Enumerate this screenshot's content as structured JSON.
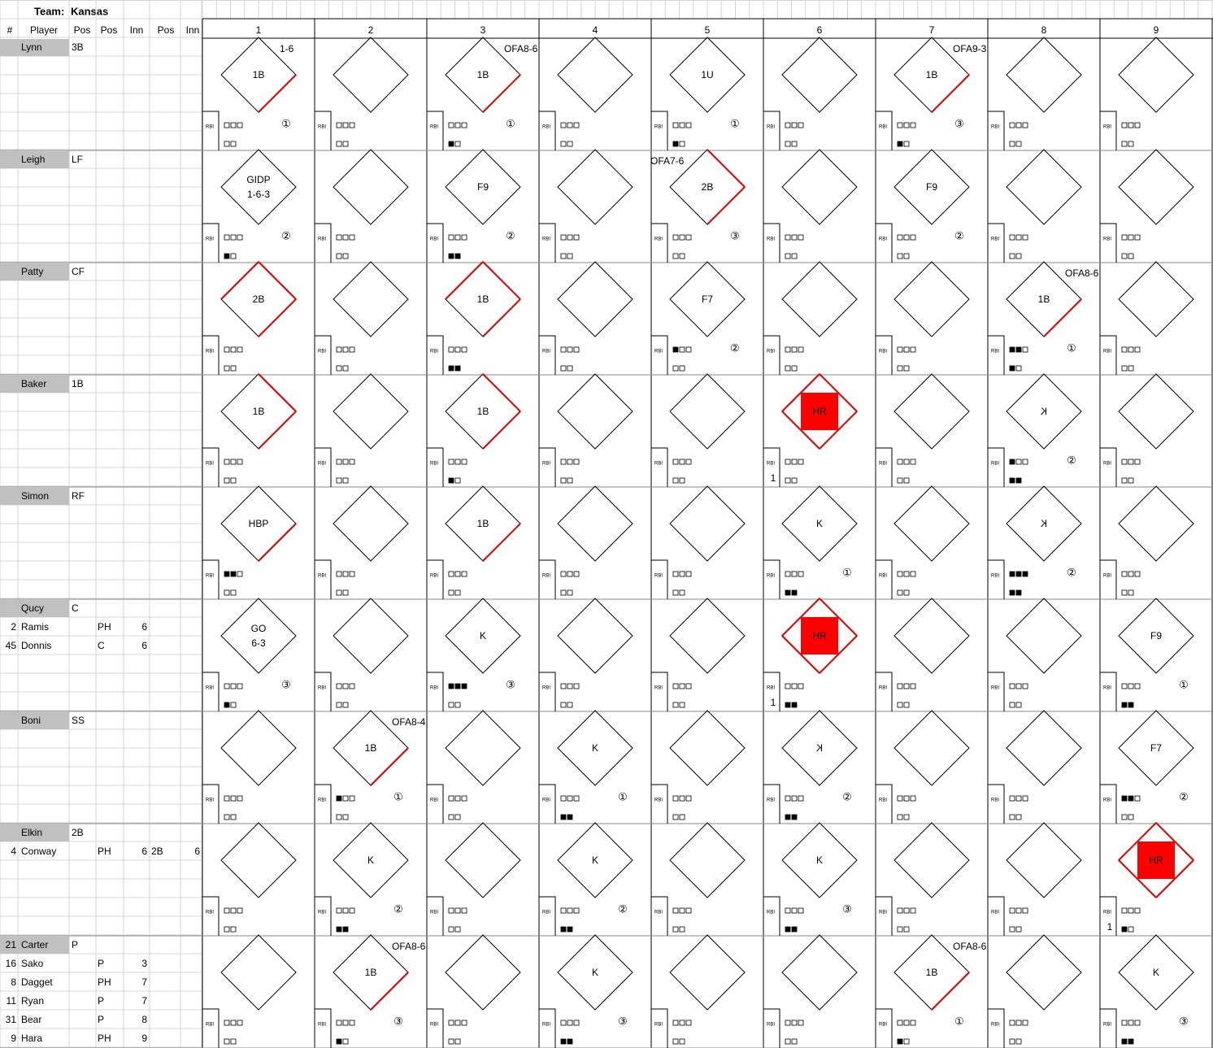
{
  "header": {
    "team_label": "Team:",
    "team": "Kansas"
  },
  "columns": [
    "#",
    "Player",
    "Pos",
    "Pos",
    "Inn",
    "Pos",
    "Inn"
  ],
  "innings": [
    1,
    2,
    3,
    4,
    5,
    6,
    7,
    8,
    9
  ],
  "rbi_label": "RBI",
  "roster": [
    {
      "lines": [
        {
          "name": "Lynn",
          "pos": "3B"
        }
      ]
    },
    {
      "lines": [
        {
          "name": "Leigh",
          "pos": "LF"
        }
      ]
    },
    {
      "lines": [
        {
          "name": "Patty",
          "pos": "CF"
        }
      ]
    },
    {
      "lines": [
        {
          "name": "Baker",
          "pos": "1B"
        }
      ]
    },
    {
      "lines": [
        {
          "name": "Simon",
          "pos": "RF"
        }
      ]
    },
    {
      "lines": [
        {
          "name": "Qucy",
          "pos": "C"
        },
        {
          "number": 2,
          "name": "Ramis",
          "sub_pos": "PH",
          "sub_inn": 6
        },
        {
          "number": 45,
          "name": "Donnis",
          "sub_pos": "C",
          "sub_inn": 6
        }
      ]
    },
    {
      "lines": [
        {
          "name": "Boni",
          "pos": "SS"
        }
      ]
    },
    {
      "lines": [
        {
          "name": "Elkin",
          "pos": "2B"
        },
        {
          "number": 4,
          "name": "Conway",
          "sub_pos": "PH",
          "sub_inn": 6,
          "pos2": "2B",
          "inn2": 6
        }
      ]
    },
    {
      "lines": [
        {
          "number": 21,
          "name": "Carter",
          "pos": "P"
        },
        {
          "number": 16,
          "name": "Sako",
          "sub_pos": "P",
          "sub_inn": 3
        },
        {
          "number": 8,
          "name": "Dagget",
          "sub_pos": "PH",
          "sub_inn": 7
        },
        {
          "number": 11,
          "name": "Ryan",
          "sub_pos": "P",
          "sub_inn": 7
        },
        {
          "number": 31,
          "name": "Bear",
          "sub_pos": "P",
          "sub_inn": 8
        },
        {
          "number": 9,
          "name": "Hara",
          "sub_pos": "PH",
          "sub_inn": 9
        }
      ]
    }
  ],
  "cells": [
    [
      {
        "result": "1B",
        "note": "1-6",
        "out": "①",
        "reached": 1
      },
      {},
      {
        "result": "1B",
        "note": "OFA8-6",
        "out": "①",
        "strikes": 1,
        "reached": 1
      },
      {},
      {
        "result": "1U",
        "out": "①",
        "strikes": 1
      },
      {},
      {
        "result": "1B",
        "note": "OFA9-3",
        "out": "③",
        "strikes": 1,
        "reached": 1
      },
      {},
      {}
    ],
    [
      {
        "result": [
          "GIDP",
          "1-6-3"
        ],
        "out": "②",
        "strikes": 1
      },
      {},
      {
        "result": "F9",
        "out": "②",
        "strikes": 2
      },
      {},
      {
        "result": "2B",
        "note": "OFA7-6",
        "note_align": "left",
        "out": "③",
        "reached": 2
      },
      {},
      {
        "result": "F9",
        "out": "②"
      },
      {},
      {}
    ],
    [
      {
        "result": "2B",
        "reached": 3
      },
      {},
      {
        "result": "1B",
        "strikes": 2,
        "reached": 3
      },
      {},
      {
        "result": "F7",
        "out": "②",
        "balls": 1
      },
      {},
      {},
      {
        "result": "1B",
        "note": "OFA8-6",
        "out": "①",
        "balls": 2,
        "strikes": 1,
        "reached": 1
      },
      {}
    ],
    [
      {
        "result": "1B",
        "reached": 2
      },
      {},
      {
        "result": "1B",
        "strikes": 1,
        "reached": 2
      },
      {},
      {},
      {
        "result": "HR",
        "reached": 4,
        "rbi": 1
      },
      {},
      {
        "result": "K",
        "looking": true,
        "out": "②",
        "balls": 1,
        "strikes": 2
      },
      {}
    ],
    [
      {
        "result": "HBP",
        "balls": 2,
        "reached": 1
      },
      {},
      {
        "result": "1B",
        "reached": 1
      },
      {},
      {},
      {
        "result": "K",
        "out": "①",
        "strikes": 2
      },
      {},
      {
        "result": "K",
        "looking": true,
        "out": "②",
        "balls": 3,
        "strikes": 2
      },
      {}
    ],
    [
      {
        "result": [
          "GO",
          "6-3"
        ],
        "out": "③",
        "strikes": 1
      },
      {},
      {
        "result": "K",
        "out": "③",
        "balls": 3
      },
      {},
      {},
      {
        "result": "HR",
        "reached": 4,
        "rbi": 1,
        "strikes": 2
      },
      {},
      {},
      {
        "result": "F9",
        "out": "①",
        "strikes": 2
      }
    ],
    [
      {},
      {
        "result": "1B",
        "note": "OFA8-4",
        "out": "①",
        "balls": 1,
        "reached": 1
      },
      {},
      {
        "result": "K",
        "out": "①",
        "strikes": 2
      },
      {},
      {
        "result": "K",
        "looking": true,
        "out": "②",
        "strikes": 2
      },
      {},
      {},
      {
        "result": "F7",
        "out": "②",
        "balls": 2
      }
    ],
    [
      {},
      {
        "result": "K",
        "out": "②",
        "strikes": 2
      },
      {},
      {
        "result": "K",
        "out": "②",
        "strikes": 2
      },
      {},
      {
        "result": "K",
        "out": "③",
        "strikes": 2
      },
      {},
      {},
      {
        "result": "HR",
        "reached": 4,
        "rbi": 1,
        "strikes": 1
      }
    ],
    [
      {},
      {
        "result": "1B",
        "note": "OFA8-6",
        "out": "③",
        "strikes": 1,
        "reached": 1
      },
      {},
      {
        "result": "K",
        "out": "③",
        "strikes": 2
      },
      {},
      {},
      {
        "result": "1B",
        "note": "OFA8-6",
        "out": "①",
        "strikes": 1,
        "reached": 1
      },
      {},
      {
        "result": "K",
        "out": "③",
        "strikes": 2
      }
    ]
  ]
}
